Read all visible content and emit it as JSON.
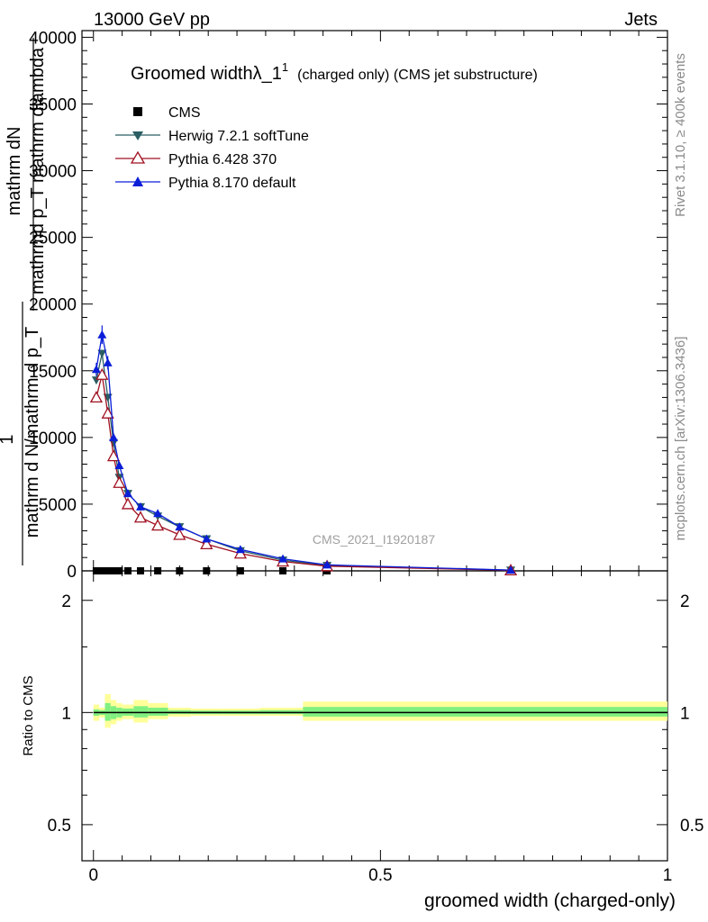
{
  "header": {
    "energy_label": "13000 GeV pp",
    "process_label": "Jets"
  },
  "side": {
    "rivet_label": "Rivet 3.1.10, ≥ 400k events",
    "mcplots_label": "mcplots.cern.ch [arXiv:1306.3436]"
  },
  "watermark": "CMS_2021_I1920187",
  "colors": {
    "cms": "#000000",
    "herwig": "#2a5e63",
    "pythia6": "#a01020",
    "pythia8": "#0a1ed8",
    "band_outer": "#ffff99",
    "band_inner": "#80f080"
  },
  "chart_data": [
    {
      "type": "line",
      "title": "Groomed widthλ_1",
      "title_sup": "1",
      "title_suffix": "(charged only) (CMS jet substructure)",
      "ylabel_lines": [
        "mathrm dN",
        "mathrmd p_T mathrm dlambda",
        "1",
        "mathrm d N/mathrm d p_T"
      ],
      "ylim": [
        0,
        40500
      ],
      "xlim": [
        -0.02,
        1.0
      ],
      "yticks": [
        0,
        5000,
        10000,
        15000,
        20000,
        25000,
        30000,
        35000,
        40000
      ],
      "ytick_labels": [
        "0",
        "5000",
        "10000",
        "15000",
        "20000",
        "25000",
        "30000",
        "35000",
        "40000"
      ],
      "legend": [
        "CMS",
        "Herwig 7.2.1 softTune",
        "Pythia 6.428 370",
        "Pythia 8.170 default"
      ],
      "series": [
        {
          "name": "CMS",
          "marker": "square",
          "x": [
            0.005,
            0.015,
            0.025,
            0.035,
            0.045,
            0.06,
            0.082,
            0.112,
            0.15,
            0.197,
            0.256,
            0.33,
            0.407
          ],
          "values": [
            0,
            0,
            0,
            0,
            0,
            0,
            0,
            0,
            0,
            0,
            0,
            0,
            0
          ]
        },
        {
          "name": "Herwig 7.2.1 softTune",
          "marker": "tri-down",
          "x": [
            0.005,
            0.015,
            0.025,
            0.035,
            0.045,
            0.06,
            0.082,
            0.112,
            0.15,
            0.197,
            0.256,
            0.33,
            0.407,
            0.727
          ],
          "values": [
            14300,
            16300,
            13000,
            9600,
            7000,
            5800,
            4800,
            4100,
            3300,
            2400,
            1500,
            800,
            400,
            50
          ]
        },
        {
          "name": "Pythia 6.428 370",
          "marker": "tri-up-open",
          "x": [
            0.005,
            0.015,
            0.025,
            0.035,
            0.045,
            0.06,
            0.082,
            0.112,
            0.15,
            0.197,
            0.256,
            0.33,
            0.407,
            0.727
          ],
          "values": [
            13000,
            14700,
            11800,
            8600,
            6600,
            5000,
            4000,
            3400,
            2700,
            2000,
            1300,
            700,
            350,
            40
          ]
        },
        {
          "name": "Pythia 8.170 default",
          "marker": "tri-up",
          "x": [
            0.005,
            0.015,
            0.025,
            0.035,
            0.045,
            0.06,
            0.082,
            0.112,
            0.15,
            0.197,
            0.256,
            0.33,
            0.407,
            0.727
          ],
          "values": [
            15100,
            17700,
            15600,
            10000,
            7900,
            5800,
            4800,
            4300,
            3300,
            2400,
            1600,
            900,
            450,
            60
          ],
          "errors": [
            500,
            700,
            500,
            300,
            250,
            200,
            150,
            120,
            100,
            80,
            60,
            40,
            30,
            10
          ]
        }
      ]
    },
    {
      "type": "area",
      "ylabel": "Ratio to CMS",
      "xlabel": "groomed width (charged-only)",
      "ylim": [
        0.4,
        2.4
      ],
      "yscale": "log",
      "xlim": [
        -0.02,
        1.0
      ],
      "yticks": [
        0.5,
        1,
        2
      ],
      "ytick_labels": [
        "0.5",
        "1",
        "2"
      ],
      "xticks": [
        0,
        0.5,
        1
      ],
      "xtick_labels": [
        "0",
        "0.5",
        "1"
      ],
      "reference": 1.0,
      "bins": [
        0.0,
        0.01,
        0.02,
        0.03,
        0.04,
        0.05,
        0.07,
        0.095,
        0.13,
        0.17,
        0.225,
        0.29,
        0.365,
        0.45,
        1.0
      ],
      "outer_band": [
        [
          0.95,
          1.05
        ],
        [
          0.97,
          1.03
        ],
        [
          0.91,
          1.12
        ],
        [
          0.93,
          1.08
        ],
        [
          0.95,
          1.06
        ],
        [
          0.96,
          1.05
        ],
        [
          0.94,
          1.08
        ],
        [
          0.96,
          1.06
        ],
        [
          0.975,
          1.03
        ],
        [
          0.98,
          1.025
        ],
        [
          0.98,
          1.025
        ],
        [
          0.98,
          1.03
        ],
        [
          0.95,
          1.07
        ],
        [
          0.95,
          1.07
        ]
      ],
      "inner_band": [
        [
          0.98,
          1.02
        ],
        [
          0.985,
          1.015
        ],
        [
          0.95,
          1.06
        ],
        [
          0.96,
          1.04
        ],
        [
          0.97,
          1.03
        ],
        [
          0.98,
          1.025
        ],
        [
          0.97,
          1.04
        ],
        [
          0.98,
          1.03
        ],
        [
          0.99,
          1.015
        ],
        [
          0.99,
          1.012
        ],
        [
          0.99,
          1.012
        ],
        [
          0.99,
          1.015
        ],
        [
          0.975,
          1.035
        ],
        [
          0.975,
          1.035
        ]
      ]
    }
  ]
}
